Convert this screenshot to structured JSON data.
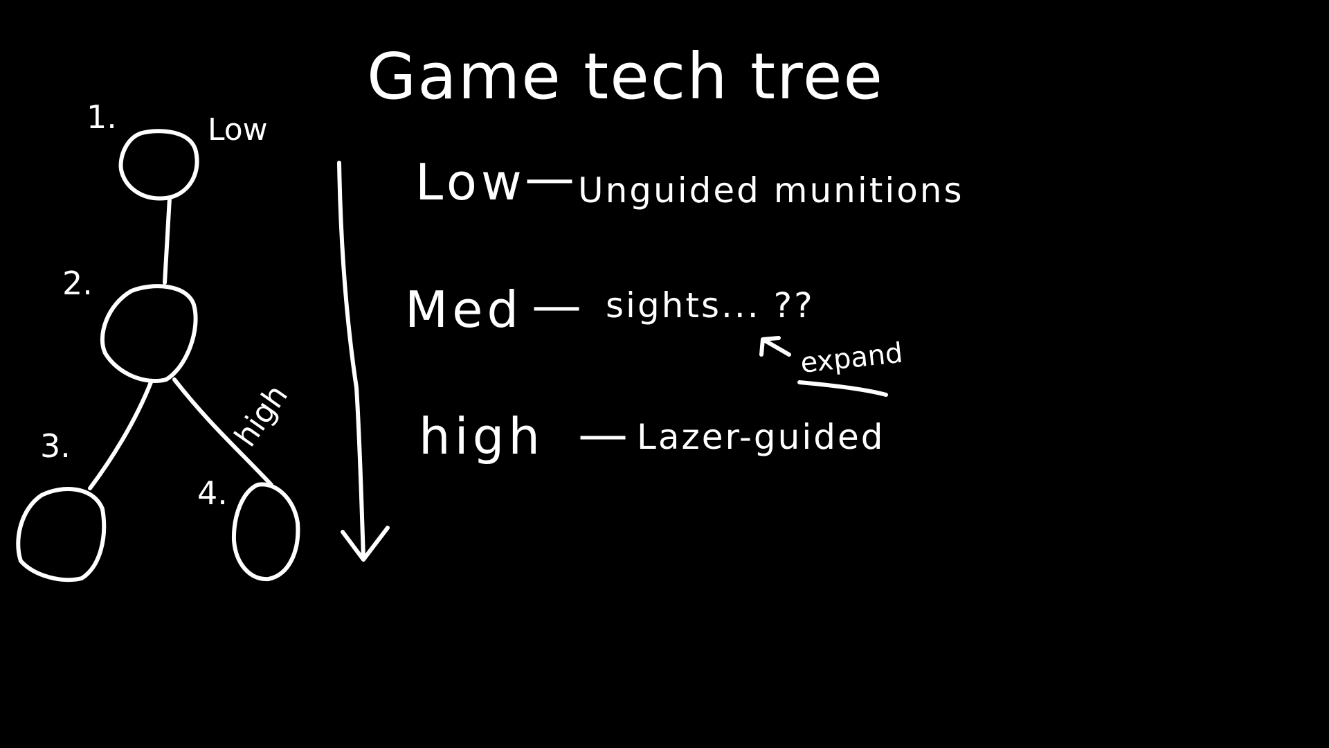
{
  "title": "Game tech tree",
  "tree": {
    "nodes": [
      {
        "label": "1."
      },
      {
        "label": "2."
      },
      {
        "label": "3."
      },
      {
        "label": "4."
      }
    ],
    "low_label": "Low",
    "high_label": "high"
  },
  "tiers": [
    {
      "name": "Low",
      "dash": "—",
      "description": "Unguided munitions"
    },
    {
      "name": "Med",
      "dash": "—",
      "description": "sights... ??"
    },
    {
      "name": "high",
      "dash": "—",
      "description": "Lazer-guided"
    }
  ],
  "annotation": {
    "text": "expand"
  },
  "colors": {
    "background": "#000000",
    "ink": "#ffffff"
  }
}
